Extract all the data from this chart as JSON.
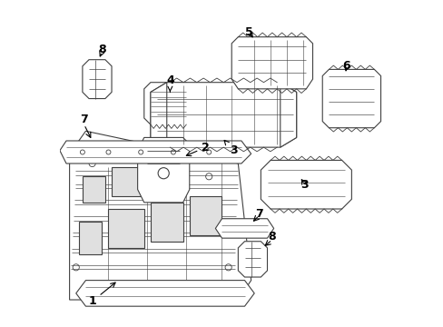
{
  "bg_color": "#ffffff",
  "line_color": "#404040",
  "line_width": 0.8,
  "figsize": [
    4.89,
    3.6
  ],
  "dpi": 100
}
